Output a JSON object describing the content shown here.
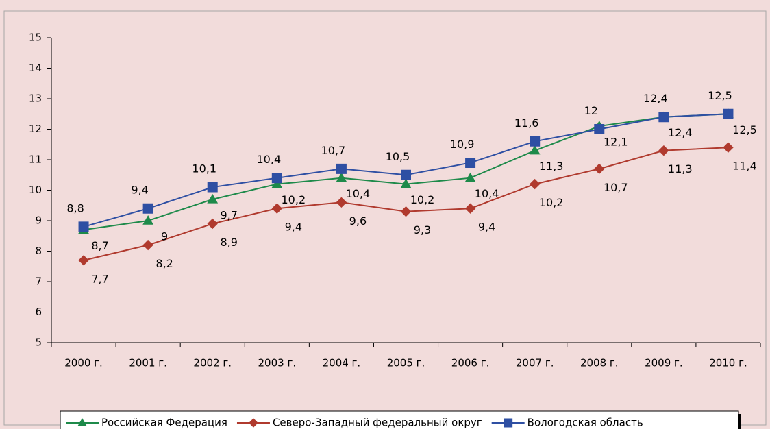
{
  "chart_data": {
    "type": "line",
    "categories": [
      "2000 г.",
      "2001 г.",
      "2002 г.",
      "2003 г.",
      "2004 г.",
      "2005 г.",
      "2006 г.",
      "2007 г.",
      "2008 г.",
      "2009 г.",
      "2010 г."
    ],
    "series": [
      {
        "name": "Российская Федерация",
        "color": "#1e8a4a",
        "marker": "triangle",
        "values": [
          8.7,
          9,
          9.7,
          10.2,
          10.4,
          10.2,
          10.4,
          11.3,
          12.1,
          12.4,
          12.5
        ],
        "value_labels": [
          "8,7",
          "9",
          "9,7",
          "10,2",
          "10,4",
          "10,2",
          "10,4",
          "11,3",
          "12,1",
          "12,4",
          "12,5"
        ]
      },
      {
        "name": "Северо-Западный федеральный округ",
        "color": "#b03a2e",
        "marker": "diamond",
        "values": [
          7.7,
          8.2,
          8.9,
          9.4,
          9.6,
          9.3,
          9.4,
          10.2,
          10.7,
          11.3,
          11.4
        ],
        "value_labels": [
          "7,7",
          "8,2",
          "8,9",
          "9,4",
          "9,6",
          "9,3",
          "9,4",
          "10,2",
          "10,7",
          "11,3",
          "11,4"
        ]
      },
      {
        "name": "Вологодская область",
        "color": "#2e4fa3",
        "marker": "square",
        "values": [
          8.8,
          9.4,
          10.1,
          10.4,
          10.7,
          10.5,
          10.9,
          11.6,
          12,
          12.4,
          12.5
        ],
        "value_labels": [
          "8,8",
          "9,4",
          "10,1",
          "10,4",
          "10,7",
          "10,5",
          "10,9",
          "11,6",
          "12",
          "12,4",
          "12,5"
        ]
      }
    ],
    "ylim": [
      5,
      15
    ],
    "yticks": [
      5,
      6,
      7,
      8,
      9,
      10,
      11,
      12,
      13,
      14,
      15
    ],
    "grid": false,
    "legend": "bottom"
  }
}
